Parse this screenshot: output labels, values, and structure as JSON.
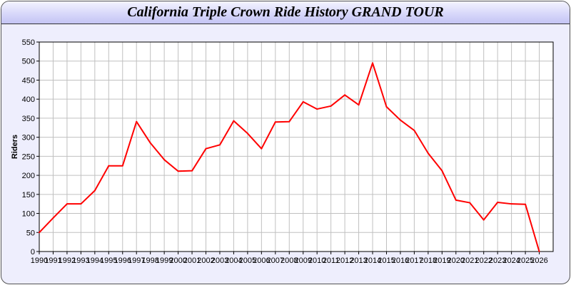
{
  "chart_data": {
    "type": "line",
    "title": "California Triple Crown Ride History GRAND TOUR",
    "xlabel": "",
    "ylabel": "Riders",
    "x": [
      1990,
      1991,
      1992,
      1993,
      1994,
      1995,
      1996,
      1997,
      1998,
      1999,
      2000,
      2001,
      2002,
      2003,
      2004,
      2005,
      2006,
      2007,
      2008,
      2009,
      2010,
      2011,
      2012,
      2013,
      2014,
      2015,
      2016,
      2017,
      2018,
      2019,
      2020,
      2021,
      2022,
      2023,
      2024,
      2025,
      2026
    ],
    "series": [
      {
        "values": [
          50,
          88,
          125,
          125,
          160,
          225,
          225,
          341,
          285,
          241,
          211,
          212,
          270,
          280,
          343,
          310,
          270,
          340,
          341,
          393,
          374,
          382,
          411,
          385,
          495,
          380,
          345,
          318,
          258,
          212,
          135,
          128,
          83,
          129,
          125,
          124,
          0
        ],
        "color": "#ff0000"
      }
    ],
    "xlim": [
      1990,
      2027
    ],
    "ylim": [
      0,
      550
    ],
    "yticks": [
      0,
      50,
      100,
      150,
      200,
      250,
      300,
      350,
      400,
      450,
      500,
      550
    ],
    "grid": true,
    "grid_color": "#c0c0c0",
    "background": "#eeeefd"
  }
}
